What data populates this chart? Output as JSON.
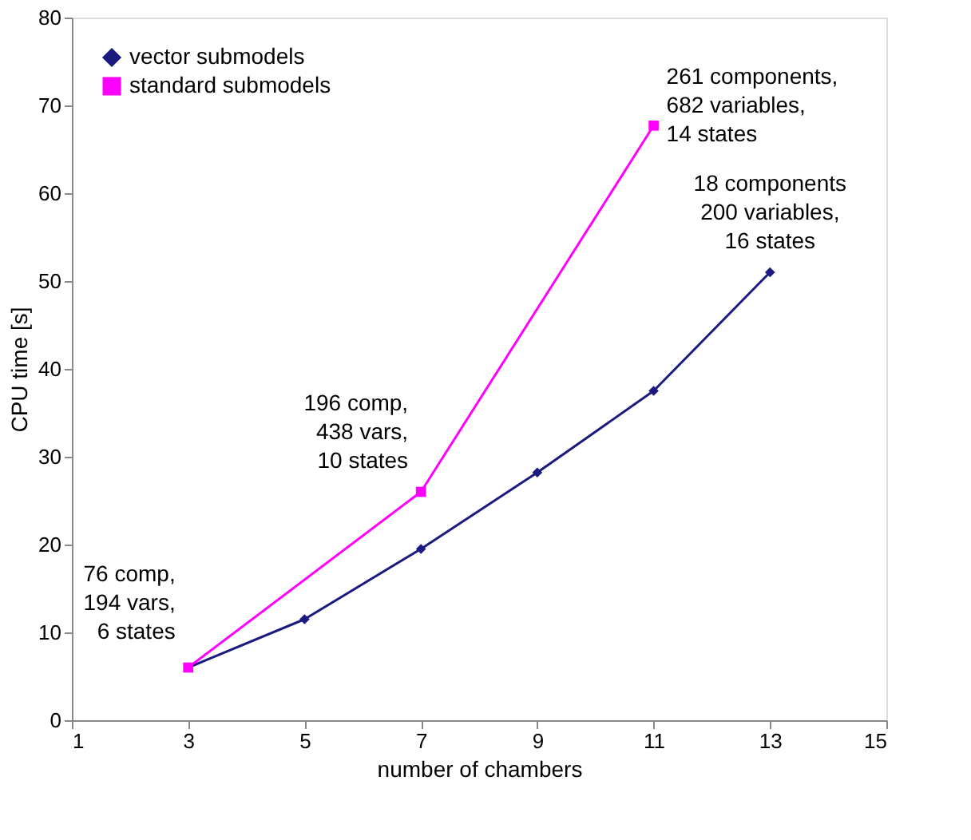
{
  "chart_data": {
    "type": "line",
    "xlabel": "number of chambers",
    "ylabel": "CPU time [s]",
    "xlim": [
      1,
      15
    ],
    "xticks": [
      1,
      3,
      5,
      7,
      9,
      11,
      13,
      15
    ],
    "ylim": [
      0,
      80
    ],
    "yticks": [
      0,
      10,
      20,
      30,
      40,
      50,
      60,
      70,
      80
    ],
    "grid": false,
    "legend": "top left",
    "series": [
      {
        "name": "vector submodels",
        "color": "#1a1a80",
        "marker": "diamond",
        "x": [
          3,
          5,
          7,
          9,
          11,
          13
        ],
        "values": [
          6,
          11.5,
          19.5,
          28.2,
          37.5,
          51
        ]
      },
      {
        "name": "standard submodels",
        "color": "#ff00ff",
        "marker": "square",
        "x": [
          3,
          7,
          11
        ],
        "values": [
          6,
          26,
          67.7
        ]
      }
    ],
    "annotations": [
      {
        "text": "76 comp,\n194 vars,\n6 states",
        "x": 3,
        "y": 6
      },
      {
        "text": "196 comp,\n438 vars,\n10 states",
        "x": 7,
        "y": 26
      },
      {
        "text": "261 components,\n682 variables,\n14 states",
        "x": 11,
        "y": 67.7
      },
      {
        "text": "18 components\n200 variables,\n16 states",
        "x": 13,
        "y": 51
      }
    ]
  }
}
